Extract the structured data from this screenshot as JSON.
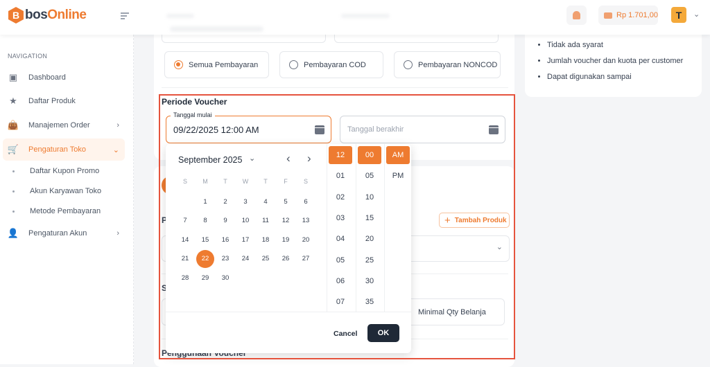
{
  "header": {
    "logo": "bosOnline",
    "balance": "Rp 1.701,00",
    "avatar_letter": "T"
  },
  "sidebar": {
    "heading": "NAVIGATION",
    "items": [
      {
        "label": "Dashboard",
        "icon": "monitor-icon"
      },
      {
        "label": "Daftar Produk",
        "icon": "star-icon"
      },
      {
        "label": "Manajemen Order",
        "icon": "bag-icon"
      },
      {
        "label": "Pengaturan Toko",
        "icon": "cart-icon"
      },
      {
        "label": "Pengaturan Akun",
        "icon": "user-icon"
      }
    ],
    "subitems": [
      "Daftar Kupon Promo",
      "Akun Karyawan Toko",
      "Metode Pembayaran"
    ]
  },
  "payment": {
    "options": [
      "Semua Pembayaran",
      "Pembayaran COD",
      "Pembayaran NONCOD"
    ],
    "selected": "Semua Pembayaran"
  },
  "period": {
    "title": "Periode Voucher",
    "start_label": "Tanggal mulai",
    "start_value": "09/22/2025 12:00 AM",
    "end_placeholder": "Tanggal berakhir"
  },
  "picker": {
    "month_label": "September 2025",
    "weekdays": [
      "S",
      "M",
      "T",
      "W",
      "T",
      "F",
      "S"
    ],
    "first_weekday": 1,
    "days_in_month": 30,
    "selected_day": 22,
    "hours": [
      "12",
      "01",
      "02",
      "03",
      "04",
      "05",
      "06",
      "07"
    ],
    "minutes": [
      "00",
      "05",
      "10",
      "15",
      "20",
      "25",
      "30",
      "35"
    ],
    "ampm": [
      "AM",
      "PM"
    ],
    "selected": {
      "hour": "12",
      "minute": "00",
      "ampm": "AM"
    },
    "cancel": "Cancel",
    "ok": "OK"
  },
  "form": {
    "add_product": "Tambah Produk",
    "min_qty": "Minimal Qty Belanja",
    "section_p": "P",
    "section_s": "S",
    "usage": "Penggunaan Voucher"
  },
  "summary": [
    "Tidak ada syarat",
    "Jumlah voucher dan kuota per customer",
    "Dapat digunakan sampai"
  ],
  "colors": {
    "accent": "#ee7b30",
    "highlight_border": "#e5533d",
    "ok_button": "#1f2937"
  }
}
